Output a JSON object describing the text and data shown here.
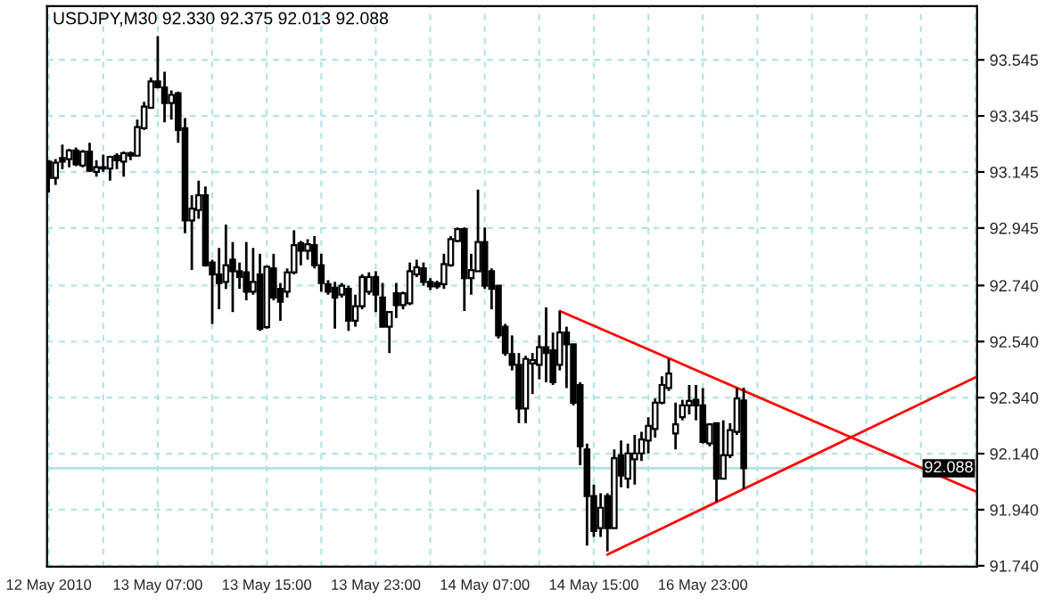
{
  "chart_data": {
    "type": "candlestick",
    "title": "USDJPY,M30 92.330 92.375 92.013 92.088",
    "categories": [
      "12 May 2010",
      null,
      null,
      null,
      null,
      null,
      null,
      null,
      null,
      null,
      null,
      null,
      null,
      null,
      null,
      null,
      "13 May 07:00",
      null,
      null,
      null,
      null,
      null,
      null,
      null,
      null,
      null,
      null,
      null,
      null,
      null,
      null,
      null,
      "13 May 15:00",
      null,
      null,
      null,
      null,
      null,
      null,
      null,
      null,
      null,
      null,
      null,
      null,
      null,
      null,
      null,
      "13 May 23:00",
      null,
      null,
      null,
      null,
      null,
      null,
      null,
      null,
      null,
      null,
      null,
      null,
      null,
      null,
      null,
      "14 May 07:00",
      null,
      null,
      null,
      null,
      null,
      null,
      null,
      null,
      null,
      null,
      null,
      null,
      null,
      null,
      null,
      "14 May 15:00",
      null,
      null,
      null,
      null,
      null,
      null,
      null,
      null,
      null,
      null,
      null,
      null,
      null,
      null,
      null,
      "16 May 23:00",
      null,
      null,
      null,
      null,
      null,
      null,
      null,
      null,
      null,
      null,
      null,
      null,
      null,
      null,
      null,
      null,
      null,
      null,
      null,
      null,
      null,
      null,
      null,
      null,
      null,
      null,
      null,
      null,
      null,
      null,
      null,
      null,
      null,
      null,
      null,
      null,
      null,
      null,
      null,
      null
    ],
    "ohlc": [
      [
        93.182,
        93.187,
        93.072,
        93.124
      ],
      [
        93.124,
        93.191,
        93.099,
        93.178
      ],
      [
        93.195,
        93.243,
        93.155,
        93.182
      ],
      [
        93.191,
        93.228,
        93.162,
        93.222
      ],
      [
        93.222,
        93.232,
        93.166,
        93.172
      ],
      [
        93.168,
        93.224,
        93.162,
        93.218
      ],
      [
        93.218,
        93.249,
        93.145,
        93.149
      ],
      [
        93.145,
        93.187,
        93.128,
        93.162
      ],
      [
        93.162,
        93.207,
        93.145,
        93.157
      ],
      [
        93.157,
        93.203,
        93.114,
        93.199
      ],
      [
        93.203,
        93.212,
        93.155,
        93.187
      ],
      [
        93.182,
        93.218,
        93.128,
        93.212
      ],
      [
        93.212,
        93.218,
        93.187,
        93.203
      ],
      [
        93.203,
        93.332,
        93.203,
        93.305
      ],
      [
        93.301,
        93.395,
        93.295,
        93.378
      ],
      [
        93.374,
        93.482,
        93.37,
        93.468
      ],
      [
        93.468,
        93.63,
        93.443,
        93.447
      ],
      [
        93.447,
        93.503,
        93.322,
        93.391
      ],
      [
        93.391,
        93.436,
        93.332,
        93.42
      ],
      [
        93.426,
        93.432,
        93.249,
        93.295
      ],
      [
        93.301,
        93.337,
        92.926,
        92.972
      ],
      [
        92.972,
        93.062,
        92.795,
        93.014
      ],
      [
        93.009,
        93.114,
        92.978,
        93.062
      ],
      [
        93.062,
        93.093,
        92.807,
        92.812
      ],
      [
        92.822,
        92.832,
        92.603,
        92.78
      ],
      [
        92.78,
        92.874,
        92.655,
        92.749
      ],
      [
        92.753,
        92.957,
        92.728,
        92.812
      ],
      [
        92.832,
        92.895,
        92.645,
        92.791
      ],
      [
        92.791,
        92.822,
        92.728,
        92.77
      ],
      [
        92.787,
        92.895,
        92.687,
        92.718
      ],
      [
        92.718,
        92.874,
        92.707,
        92.753
      ],
      [
        92.78,
        92.853,
        92.578,
        92.586
      ],
      [
        92.591,
        92.812,
        92.586,
        92.807
      ],
      [
        92.801,
        92.853,
        92.687,
        92.697
      ],
      [
        92.728,
        92.749,
        92.614,
        92.682
      ],
      [
        92.718,
        92.801,
        92.697,
        92.787
      ],
      [
        92.787,
        92.937,
        92.78,
        92.884
      ],
      [
        92.891,
        92.899,
        92.812,
        92.864
      ],
      [
        92.864,
        92.905,
        92.832,
        92.887
      ],
      [
        92.884,
        92.916,
        92.801,
        92.812
      ],
      [
        92.812,
        92.853,
        92.718,
        92.749
      ],
      [
        92.745,
        92.759,
        92.707,
        92.718
      ],
      [
        92.732,
        92.753,
        92.586,
        92.697
      ],
      [
        92.707,
        92.749,
        92.697,
        92.739
      ],
      [
        92.728,
        92.739,
        92.578,
        92.614
      ],
      [
        92.614,
        92.707,
        92.593,
        92.666
      ],
      [
        92.666,
        92.78,
        92.655,
        92.77
      ],
      [
        92.718,
        92.787,
        92.707,
        92.77
      ],
      [
        92.77,
        92.791,
        92.645,
        92.707
      ],
      [
        92.697,
        92.749,
        92.591,
        92.593
      ],
      [
        92.593,
        92.645,
        92.499,
        92.645
      ],
      [
        92.712,
        92.749,
        92.624,
        92.67
      ],
      [
        92.67,
        92.718,
        92.655,
        92.712
      ],
      [
        92.676,
        92.822,
        92.67,
        92.791
      ],
      [
        92.78,
        92.832,
        92.77,
        92.805
      ],
      [
        92.801,
        92.822,
        92.739,
        92.753
      ],
      [
        92.753,
        92.766,
        92.724,
        92.737
      ],
      [
        92.749,
        92.757,
        92.728,
        92.737
      ],
      [
        92.745,
        92.853,
        92.728,
        92.816
      ],
      [
        92.812,
        92.916,
        92.807,
        92.905
      ],
      [
        92.899,
        92.947,
        92.895,
        92.941
      ],
      [
        92.941,
        92.947,
        92.649,
        92.766
      ],
      [
        92.766,
        92.853,
        92.707,
        92.795
      ],
      [
        92.791,
        93.082,
        92.791,
        92.895
      ],
      [
        92.895,
        92.947,
        92.728,
        92.739
      ],
      [
        92.791,
        92.801,
        92.655,
        92.728
      ],
      [
        92.739,
        92.739,
        92.551,
        92.562
      ],
      [
        92.593,
        92.603,
        92.489,
        92.499
      ],
      [
        92.495,
        92.562,
        92.437,
        92.457
      ],
      [
        92.457,
        92.499,
        92.249,
        92.301
      ],
      [
        92.301,
        92.489,
        92.249,
        92.478
      ],
      [
        92.462,
        92.499,
        92.353,
        92.474
      ],
      [
        92.457,
        92.562,
        92.405,
        92.52
      ],
      [
        92.52,
        92.662,
        92.395,
        92.499
      ],
      [
        92.509,
        92.572,
        92.385,
        92.395
      ],
      [
        92.457,
        92.649,
        92.437,
        92.572
      ],
      [
        92.572,
        92.593,
        92.374,
        92.53
      ],
      [
        92.53,
        92.53,
        92.312,
        92.322
      ],
      [
        92.385,
        92.395,
        92.099,
        92.166
      ],
      [
        92.155,
        92.176,
        91.812,
        91.989
      ],
      [
        91.989,
        92.03,
        91.843,
        91.864
      ],
      [
        91.874,
        91.999,
        91.843,
        91.947
      ],
      [
        91.989,
        91.999,
        91.791,
        91.874
      ],
      [
        91.874,
        92.155,
        91.874,
        92.124
      ],
      [
        92.134,
        92.187,
        92.02,
        92.062
      ],
      [
        92.051,
        92.176,
        92.016,
        92.141
      ],
      [
        92.12,
        92.207,
        92.03,
        92.141
      ],
      [
        92.141,
        92.218,
        92.114,
        92.191
      ],
      [
        92.187,
        92.27,
        92.141,
        92.239
      ],
      [
        92.228,
        92.337,
        92.197,
        92.322
      ],
      [
        92.322,
        92.416,
        92.316,
        92.385
      ],
      [
        92.374,
        92.478,
        92.364,
        92.426
      ],
      [
        92.212,
        92.322,
        92.155,
        92.245
      ],
      [
        92.27,
        92.332,
        92.259,
        92.312
      ],
      [
        92.312,
        92.385,
        92.28,
        92.328
      ],
      [
        92.332,
        92.385,
        92.259,
        92.312
      ],
      [
        92.312,
        92.374,
        92.176,
        92.182
      ],
      [
        92.176,
        92.249,
        92.166,
        92.245
      ],
      [
        92.249,
        92.249,
        91.968,
        92.051
      ],
      [
        92.051,
        92.259,
        92.051,
        92.134
      ],
      [
        92.134,
        92.249,
        92.124,
        92.224
      ],
      [
        92.218,
        92.374,
        92.207,
        92.337
      ],
      [
        92.33,
        92.375,
        92.013,
        92.088
      ],
      null,
      null,
      null,
      null,
      null,
      null,
      null,
      null,
      null,
      null,
      null,
      null,
      null,
      null,
      null,
      null,
      null,
      null,
      null,
      null,
      null,
      null,
      null,
      null,
      null,
      null,
      null,
      null,
      null,
      null,
      null,
      null,
      null,
      null
    ],
    "series": [
      {
        "type": "line",
        "color": "#ff0000",
        "values": [
          null,
          null,
          null,
          null,
          null,
          null,
          null,
          null,
          null,
          null,
          null,
          null,
          null,
          null,
          null,
          null,
          null,
          null,
          null,
          null,
          null,
          null,
          null,
          null,
          null,
          null,
          null,
          null,
          null,
          null,
          null,
          null,
          null,
          null,
          null,
          null,
          null,
          null,
          null,
          null,
          null,
          null,
          null,
          null,
          null,
          null,
          null,
          null,
          null,
          null,
          null,
          null,
          null,
          null,
          null,
          null,
          null,
          null,
          null,
          null,
          null,
          null,
          null,
          null,
          null,
          null,
          null,
          null,
          null,
          null,
          null,
          null,
          null,
          null,
          null,
          92.649,
          null,
          null,
          null,
          null,
          null,
          null,
          null,
          null,
          null,
          null,
          null,
          null,
          null,
          null,
          null,
          null,
          null,
          null,
          null,
          null,
          null,
          null,
          null,
          null,
          null,
          null,
          null,
          null,
          null,
          null,
          null,
          null,
          null,
          null,
          null,
          null,
          null,
          null,
          null,
          null,
          null,
          null,
          null,
          null,
          null,
          null,
          null,
          null,
          null,
          null,
          null,
          null,
          null,
          null,
          null,
          null,
          null,
          null,
          null,
          null,
          92.006
        ]
      },
      {
        "type": "line",
        "color": "#ff0000",
        "values": [
          null,
          null,
          null,
          null,
          null,
          null,
          null,
          null,
          null,
          null,
          null,
          null,
          null,
          null,
          null,
          null,
          null,
          null,
          null,
          null,
          null,
          null,
          null,
          null,
          null,
          null,
          null,
          null,
          null,
          null,
          null,
          null,
          null,
          null,
          null,
          null,
          null,
          null,
          null,
          null,
          null,
          null,
          null,
          null,
          null,
          null,
          null,
          null,
          null,
          null,
          null,
          null,
          null,
          null,
          null,
          null,
          null,
          null,
          null,
          null,
          null,
          null,
          null,
          null,
          null,
          null,
          null,
          null,
          null,
          null,
          null,
          null,
          null,
          null,
          null,
          null,
          null,
          null,
          null,
          null,
          null,
          null,
          91.78,
          null,
          null,
          null,
          null,
          null,
          null,
          null,
          null,
          null,
          null,
          null,
          null,
          null,
          null,
          null,
          null,
          null,
          null,
          null,
          null,
          null,
          null,
          null,
          null,
          null,
          null,
          null,
          null,
          null,
          null,
          null,
          null,
          null,
          null,
          null,
          null,
          null,
          null,
          null,
          null,
          null,
          null,
          null,
          null,
          null,
          null,
          null,
          null,
          null,
          null,
          null,
          null,
          null,
          92.412
        ]
      }
    ],
    "ylim": [
      91.737,
      93.737
    ],
    "yticks": [
      {
        "value": 91.74,
        "label": "91.740"
      },
      {
        "value": 91.94,
        "label": "91.940"
      },
      {
        "value": 92.14,
        "label": "92.140"
      },
      {
        "value": 92.34,
        "label": "92.340"
      },
      {
        "value": 92.54,
        "label": "92.540"
      },
      {
        "value": 92.74,
        "label": "92.740"
      },
      92.945,
      93.145,
      93.345,
      93.545
    ],
    "grid": true,
    "ref_lines": [
      {
        "axis": "y",
        "value": 92.088,
        "label": "92.088",
        "color": "#b0e0e0"
      }
    ]
  }
}
